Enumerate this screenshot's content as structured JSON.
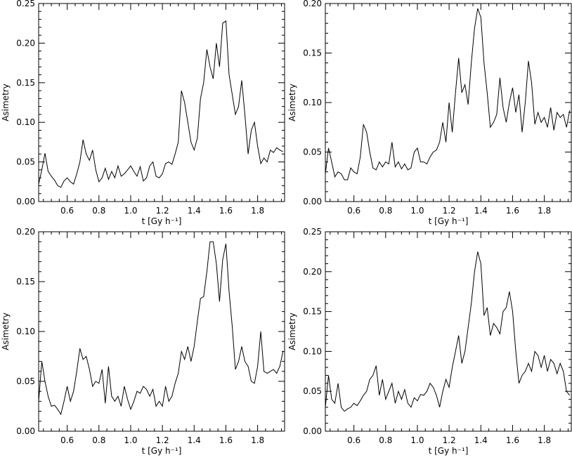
{
  "chart_data": [
    {
      "type": "line",
      "xlabel": "t [Gy h⁻¹]",
      "ylabel": "Asimetry",
      "xlim": [
        0.42,
        1.97
      ],
      "ylim": [
        0,
        0.25
      ],
      "xticks": [
        0.6,
        0.8,
        1.0,
        1.2,
        1.4,
        1.6,
        1.8
      ],
      "xtick_labels": [
        "0.6",
        "0.8",
        "1.0",
        "1.2",
        "1.4",
        "1.6",
        "1.8"
      ],
      "yticks": [
        0,
        0.05,
        0.1,
        0.15,
        0.2,
        0.25
      ],
      "ytick_labels": [
        "0.00",
        "0.05",
        "0.10",
        "0.15",
        "0.20",
        "0.25"
      ],
      "grid": false,
      "series": [
        {
          "x": [
            0.42,
            0.44,
            0.46,
            0.48,
            0.5,
            0.52,
            0.54,
            0.56,
            0.58,
            0.6,
            0.62,
            0.64,
            0.66,
            0.68,
            0.7,
            0.72,
            0.74,
            0.76,
            0.78,
            0.8,
            0.82,
            0.84,
            0.86,
            0.88,
            0.9,
            0.92,
            0.94,
            0.96,
            0.98,
            1.0,
            1.02,
            1.04,
            1.06,
            1.08,
            1.1,
            1.12,
            1.14,
            1.16,
            1.18,
            1.2,
            1.22,
            1.24,
            1.26,
            1.28,
            1.3,
            1.32,
            1.34,
            1.36,
            1.38,
            1.4,
            1.42,
            1.44,
            1.46,
            1.48,
            1.5,
            1.52,
            1.54,
            1.56,
            1.58,
            1.6,
            1.62,
            1.64,
            1.66,
            1.68,
            1.7,
            1.72,
            1.74,
            1.76,
            1.78,
            1.8,
            1.82,
            1.84,
            1.86,
            1.88,
            1.9,
            1.92,
            1.94,
            1.96
          ],
          "y": [
            0.022,
            0.04,
            0.061,
            0.038,
            0.032,
            0.027,
            0.02,
            0.018,
            0.026,
            0.03,
            0.025,
            0.022,
            0.035,
            0.05,
            0.078,
            0.06,
            0.052,
            0.065,
            0.04,
            0.025,
            0.03,
            0.042,
            0.028,
            0.038,
            0.03,
            0.045,
            0.032,
            0.035,
            0.04,
            0.045,
            0.038,
            0.032,
            0.044,
            0.026,
            0.03,
            0.045,
            0.05,
            0.032,
            0.03,
            0.035,
            0.048,
            0.05,
            0.047,
            0.06,
            0.075,
            0.14,
            0.125,
            0.1,
            0.075,
            0.065,
            0.08,
            0.13,
            0.15,
            0.192,
            0.17,
            0.155,
            0.2,
            0.17,
            0.225,
            0.228,
            0.16,
            0.135,
            0.11,
            0.12,
            0.153,
            0.11,
            0.06,
            0.09,
            0.1,
            0.07,
            0.048,
            0.055,
            0.05,
            0.065,
            0.062,
            0.068,
            0.065,
            0.063
          ]
        }
      ]
    },
    {
      "type": "line",
      "xlabel": "t [Gy h⁻¹]",
      "ylabel": "Asimetry",
      "xlim": [
        0.42,
        1.97
      ],
      "ylim": [
        0,
        0.2
      ],
      "xticks": [
        0.6,
        0.8,
        1.0,
        1.2,
        1.4,
        1.6,
        1.8
      ],
      "xtick_labels": [
        "0.6",
        "0.8",
        "1.0",
        "1.2",
        "1.4",
        "1.6",
        "1.8"
      ],
      "yticks": [
        0,
        0.05,
        0.1,
        0.15,
        0.2
      ],
      "ytick_labels": [
        "0.00",
        "0.05",
        "0.10",
        "0.15",
        "0.20"
      ],
      "grid": false,
      "series": [
        {
          "x": [
            0.42,
            0.44,
            0.46,
            0.48,
            0.5,
            0.52,
            0.54,
            0.56,
            0.58,
            0.6,
            0.62,
            0.64,
            0.66,
            0.68,
            0.7,
            0.72,
            0.74,
            0.76,
            0.78,
            0.8,
            0.82,
            0.84,
            0.86,
            0.88,
            0.9,
            0.92,
            0.94,
            0.96,
            0.98,
            1.0,
            1.02,
            1.04,
            1.06,
            1.08,
            1.1,
            1.12,
            1.14,
            1.16,
            1.18,
            1.2,
            1.22,
            1.24,
            1.26,
            1.28,
            1.3,
            1.32,
            1.34,
            1.36,
            1.38,
            1.4,
            1.42,
            1.44,
            1.46,
            1.48,
            1.5,
            1.52,
            1.54,
            1.56,
            1.58,
            1.6,
            1.62,
            1.64,
            1.66,
            1.68,
            1.7,
            1.72,
            1.74,
            1.76,
            1.78,
            1.8,
            1.82,
            1.84,
            1.86,
            1.88,
            1.9,
            1.92,
            1.94,
            1.96
          ],
          "y": [
            0.028,
            0.054,
            0.04,
            0.025,
            0.03,
            0.028,
            0.022,
            0.022,
            0.034,
            0.03,
            0.028,
            0.045,
            0.078,
            0.07,
            0.05,
            0.034,
            0.032,
            0.04,
            0.035,
            0.04,
            0.038,
            0.06,
            0.035,
            0.04,
            0.033,
            0.038,
            0.032,
            0.034,
            0.05,
            0.054,
            0.04,
            0.04,
            0.038,
            0.045,
            0.05,
            0.052,
            0.06,
            0.08,
            0.06,
            0.1,
            0.07,
            0.11,
            0.145,
            0.11,
            0.118,
            0.098,
            0.14,
            0.175,
            0.195,
            0.186,
            0.14,
            0.11,
            0.075,
            0.08,
            0.088,
            0.125,
            0.095,
            0.08,
            0.1,
            0.115,
            0.09,
            0.108,
            0.07,
            0.1,
            0.142,
            0.12,
            0.078,
            0.09,
            0.08,
            0.085,
            0.075,
            0.095,
            0.072,
            0.09,
            0.085,
            0.088,
            0.075,
            0.092
          ]
        }
      ]
    },
    {
      "type": "line",
      "xlabel": "t [Gy h⁻¹]",
      "ylabel": "Asimetry",
      "xlim": [
        0.42,
        1.97
      ],
      "ylim": [
        0,
        0.2
      ],
      "xticks": [
        0.6,
        0.8,
        1.0,
        1.2,
        1.4,
        1.6,
        1.8
      ],
      "xtick_labels": [
        "0.6",
        "0.8",
        "1.0",
        "1.2",
        "1.4",
        "1.6",
        "1.8"
      ],
      "yticks": [
        0,
        0.05,
        0.1,
        0.15,
        0.2
      ],
      "ytick_labels": [
        "0.00",
        "0.05",
        "0.10",
        "0.15",
        "0.20"
      ],
      "grid": false,
      "series": [
        {
          "x": [
            0.42,
            0.44,
            0.46,
            0.48,
            0.5,
            0.52,
            0.54,
            0.56,
            0.58,
            0.6,
            0.62,
            0.64,
            0.66,
            0.68,
            0.7,
            0.72,
            0.74,
            0.76,
            0.78,
            0.8,
            0.82,
            0.84,
            0.86,
            0.88,
            0.9,
            0.92,
            0.94,
            0.96,
            0.98,
            1.0,
            1.02,
            1.04,
            1.06,
            1.08,
            1.1,
            1.12,
            1.14,
            1.16,
            1.18,
            1.2,
            1.22,
            1.24,
            1.26,
            1.28,
            1.3,
            1.32,
            1.34,
            1.36,
            1.38,
            1.4,
            1.42,
            1.44,
            1.46,
            1.48,
            1.5,
            1.52,
            1.54,
            1.56,
            1.58,
            1.6,
            1.62,
            1.64,
            1.66,
            1.68,
            1.7,
            1.72,
            1.74,
            1.76,
            1.78,
            1.8,
            1.82,
            1.84,
            1.86,
            1.88,
            1.9,
            1.92,
            1.94,
            1.96
          ],
          "y": [
            0.03,
            0.07,
            0.05,
            0.035,
            0.025,
            0.026,
            0.022,
            0.017,
            0.03,
            0.045,
            0.03,
            0.04,
            0.06,
            0.083,
            0.072,
            0.075,
            0.062,
            0.045,
            0.05,
            0.048,
            0.062,
            0.028,
            0.065,
            0.035,
            0.03,
            0.035,
            0.025,
            0.045,
            0.032,
            0.022,
            0.03,
            0.04,
            0.038,
            0.045,
            0.042,
            0.035,
            0.042,
            0.025,
            0.03,
            0.025,
            0.045,
            0.03,
            0.035,
            0.048,
            0.058,
            0.08,
            0.072,
            0.085,
            0.07,
            0.085,
            0.11,
            0.133,
            0.135,
            0.16,
            0.19,
            0.19,
            0.168,
            0.13,
            0.172,
            0.188,
            0.14,
            0.105,
            0.062,
            0.07,
            0.085,
            0.07,
            0.065,
            0.05,
            0.048,
            0.065,
            0.1,
            0.06,
            0.058,
            0.06,
            0.062,
            0.058,
            0.065,
            0.08
          ]
        }
      ]
    },
    {
      "type": "line",
      "xlabel": "t [Gy h⁻¹]",
      "ylabel": "Asimetry",
      "xlim": [
        0.42,
        1.97
      ],
      "ylim": [
        0,
        0.25
      ],
      "xticks": [
        0.6,
        0.8,
        1.0,
        1.2,
        1.4,
        1.6,
        1.8
      ],
      "xtick_labels": [
        "0.6",
        "0.8",
        "1.0",
        "1.2",
        "1.4",
        "1.6",
        "1.8"
      ],
      "yticks": [
        0,
        0.05,
        0.1,
        0.15,
        0.2,
        0.25
      ],
      "ytick_labels": [
        "0.00",
        "0.05",
        "0.10",
        "0.15",
        "0.20",
        "0.25"
      ],
      "grid": false,
      "series": [
        {
          "x": [
            0.42,
            0.44,
            0.46,
            0.48,
            0.5,
            0.52,
            0.54,
            0.56,
            0.58,
            0.6,
            0.62,
            0.64,
            0.66,
            0.68,
            0.7,
            0.72,
            0.74,
            0.76,
            0.78,
            0.8,
            0.82,
            0.84,
            0.86,
            0.88,
            0.9,
            0.92,
            0.94,
            0.96,
            0.98,
            1.0,
            1.02,
            1.04,
            1.06,
            1.08,
            1.1,
            1.12,
            1.14,
            1.16,
            1.18,
            1.2,
            1.22,
            1.24,
            1.26,
            1.28,
            1.3,
            1.32,
            1.34,
            1.36,
            1.38,
            1.4,
            1.42,
            1.44,
            1.46,
            1.48,
            1.5,
            1.52,
            1.54,
            1.56,
            1.58,
            1.6,
            1.62,
            1.64,
            1.66,
            1.68,
            1.7,
            1.72,
            1.74,
            1.76,
            1.78,
            1.8,
            1.82,
            1.84,
            1.86,
            1.88,
            1.9,
            1.92,
            1.94,
            1.96
          ],
          "y": [
            0.03,
            0.07,
            0.04,
            0.035,
            0.06,
            0.03,
            0.025,
            0.028,
            0.03,
            0.035,
            0.032,
            0.038,
            0.045,
            0.05,
            0.065,
            0.07,
            0.082,
            0.045,
            0.065,
            0.04,
            0.05,
            0.06,
            0.035,
            0.05,
            0.04,
            0.052,
            0.035,
            0.03,
            0.042,
            0.038,
            0.046,
            0.045,
            0.05,
            0.06,
            0.055,
            0.045,
            0.03,
            0.05,
            0.065,
            0.055,
            0.08,
            0.1,
            0.12,
            0.085,
            0.1,
            0.13,
            0.16,
            0.2,
            0.225,
            0.21,
            0.145,
            0.155,
            0.12,
            0.135,
            0.13,
            0.122,
            0.15,
            0.155,
            0.175,
            0.15,
            0.1,
            0.06,
            0.07,
            0.075,
            0.085,
            0.075,
            0.1,
            0.095,
            0.08,
            0.095,
            0.075,
            0.09,
            0.085,
            0.072,
            0.085,
            0.075,
            0.05,
            0.045
          ]
        }
      ]
    }
  ]
}
